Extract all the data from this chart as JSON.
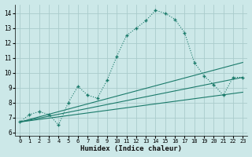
{
  "xlabel": "Humidex (Indice chaleur)",
  "bg_color": "#cce8e8",
  "grid_color": "#aacccc",
  "line_color": "#1a7a6a",
  "xlim": [
    -0.5,
    23.5
  ],
  "ylim": [
    5.8,
    14.6
  ],
  "xticks": [
    0,
    1,
    2,
    3,
    4,
    5,
    6,
    7,
    8,
    9,
    10,
    11,
    12,
    13,
    14,
    15,
    16,
    17,
    18,
    19,
    20,
    21,
    22,
    23
  ],
  "yticks": [
    6,
    7,
    8,
    9,
    10,
    11,
    12,
    13,
    14
  ],
  "curve1_x": [
    0,
    1,
    2,
    3,
    4,
    5,
    6,
    7,
    8,
    9,
    10,
    11,
    12,
    13,
    14,
    15,
    16,
    17,
    18,
    19,
    20,
    21,
    22,
    23
  ],
  "curve1_y": [
    6.7,
    7.2,
    7.4,
    7.2,
    6.5,
    8.0,
    9.1,
    8.5,
    8.3,
    9.5,
    11.1,
    12.5,
    13.0,
    13.5,
    14.2,
    14.0,
    13.6,
    12.7,
    10.7,
    9.8,
    9.2,
    8.5,
    9.7,
    9.7
  ],
  "line1_x": [
    0,
    23
  ],
  "line1_y": [
    6.7,
    10.7
  ],
  "line2_x": [
    0,
    23
  ],
  "line2_y": [
    6.7,
    9.7
  ],
  "line3_x": [
    0,
    23
  ],
  "line3_y": [
    6.7,
    8.7
  ]
}
